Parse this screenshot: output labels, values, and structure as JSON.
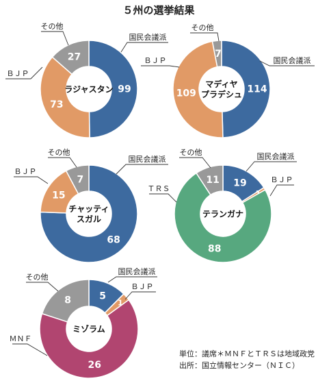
{
  "title": "５州の選挙結果",
  "colors": {
    "congress": "#3d6a9f",
    "bjp": "#e19a66",
    "other": "#999999",
    "trs": "#57a87f",
    "mnf": "#b14570"
  },
  "chart_data": [
    {
      "type": "pie",
      "state": "ラジャスタン",
      "slices": [
        {
          "label": "国民会議派",
          "value": 99,
          "color_key": "congress"
        },
        {
          "label": "ＢＪＰ",
          "value": 73,
          "color_key": "bjp"
        },
        {
          "label": "その他",
          "value": 27,
          "color_key": "other"
        }
      ]
    },
    {
      "type": "pie",
      "state": "マディヤ\nプラデシュ",
      "slices": [
        {
          "label": "国民会議派",
          "value": 114,
          "color_key": "congress"
        },
        {
          "label": "ＢＪＰ",
          "value": 109,
          "color_key": "bjp"
        },
        {
          "label": "その他",
          "value": 7,
          "color_key": "other"
        }
      ]
    },
    {
      "type": "pie",
      "state": "チャッティ\nスガル",
      "slices": [
        {
          "label": "国民会議派",
          "value": 68,
          "color_key": "congress"
        },
        {
          "label": "ＢＪＰ",
          "value": 15,
          "color_key": "bjp"
        },
        {
          "label": "その他",
          "value": 7,
          "color_key": "other"
        }
      ]
    },
    {
      "type": "pie",
      "state": "テランガナ",
      "slices": [
        {
          "label": "国民会議派",
          "value": 19,
          "color_key": "congress"
        },
        {
          "label": "ＢＪＰ",
          "value": 1,
          "color_key": "bjp"
        },
        {
          "label": "ＴＲＳ",
          "value": 88,
          "color_key": "trs"
        },
        {
          "label": "その他",
          "value": 11,
          "color_key": "other"
        }
      ]
    },
    {
      "type": "pie",
      "state": "ミゾラム",
      "slices": [
        {
          "label": "国民会議派",
          "value": 5,
          "color_key": "congress"
        },
        {
          "label": "ＢＪＰ",
          "value": 1,
          "color_key": "bjp"
        },
        {
          "label": "ＭＮＦ",
          "value": 26,
          "color_key": "mnf"
        },
        {
          "label": "その他",
          "value": 8,
          "color_key": "other"
        }
      ]
    }
  ],
  "notes": [
    "単位：議席＊ＭＮＦとＴＲＳは地域政党",
    "出所：国立情報センター（ＮＩＣ）"
  ]
}
